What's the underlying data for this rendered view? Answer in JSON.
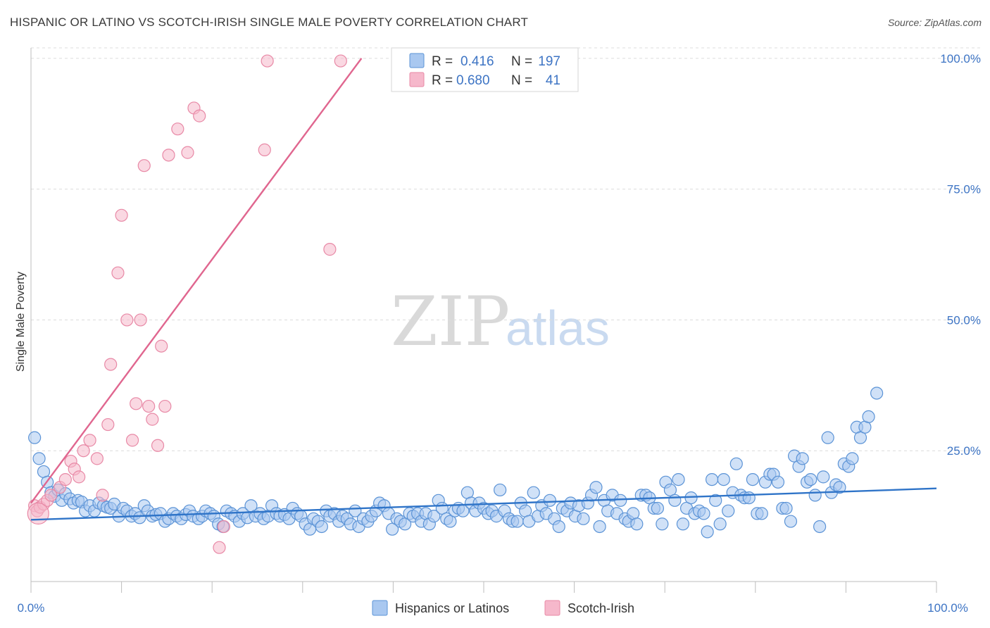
{
  "title": "HISPANIC OR LATINO VS SCOTCH-IRISH SINGLE MALE POVERTY CORRELATION CHART",
  "source": "Source: ZipAtlas.com",
  "watermark": {
    "zip": "ZIP",
    "atlas": "atlas"
  },
  "colors": {
    "blue_fill": "#a9c8f0",
    "blue_stroke": "#5b93d6",
    "blue_line": "#2f74c8",
    "pink_fill": "#f6b8cb",
    "pink_stroke": "#e889a6",
    "pink_line": "#e0668f",
    "axis_text": "#3d74c4",
    "grid": "#dcdcdc"
  },
  "legend": {
    "rows": [
      {
        "r_label": "R =",
        "r_value": "0.416",
        "n_label": "N =",
        "n_value": "197",
        "series": "blue"
      },
      {
        "r_label": "R =",
        "r_value": "0.680",
        "n_label": "N =",
        "n_value": "41",
        "series": "pink"
      }
    ]
  },
  "chart_data": {
    "type": "scatter",
    "title": "HISPANIC OR LATINO VS SCOTCH-IRISH SINGLE MALE POVERTY CORRELATION CHART",
    "xlabel": "",
    "ylabel": "Single Male Poverty",
    "xlim": [
      0,
      100
    ],
    "ylim": [
      0,
      102
    ],
    "x_tick_labels": [
      "0.0%",
      "100.0%"
    ],
    "y_ticks": [
      25,
      50,
      75,
      100
    ],
    "y_tick_labels": [
      "25.0%",
      "50.0%",
      "75.0%",
      "100.0%"
    ],
    "grid": true,
    "series": [
      {
        "name": "Hispanics or Latinos",
        "color": "blue",
        "trendline": {
          "x": [
            0,
            100
          ],
          "y": [
            11.8,
            17.8
          ]
        },
        "points": [
          [
            0.4,
            27.5
          ],
          [
            0.9,
            23.5
          ],
          [
            1.4,
            21
          ],
          [
            1.8,
            19
          ],
          [
            2.2,
            17
          ],
          [
            2.6,
            16.3
          ],
          [
            3,
            17.5
          ],
          [
            3.4,
            15.5
          ],
          [
            3.8,
            16.8
          ],
          [
            4.3,
            15.8
          ],
          [
            4.7,
            15
          ],
          [
            5.2,
            15.5
          ],
          [
            5.6,
            15.2
          ],
          [
            6,
            13.5
          ],
          [
            6.5,
            14.5
          ],
          [
            7,
            13.5
          ],
          [
            7.5,
            15
          ],
          [
            8,
            14.5
          ],
          [
            8.4,
            14.2
          ],
          [
            8.8,
            14
          ],
          [
            9.2,
            14.8
          ],
          [
            9.7,
            12.5
          ],
          [
            10.2,
            14
          ],
          [
            10.6,
            13.5
          ],
          [
            11.1,
            12.5
          ],
          [
            11.5,
            13
          ],
          [
            12,
            12.2
          ],
          [
            12.5,
            14.5
          ],
          [
            12.9,
            13.5
          ],
          [
            13.4,
            12.5
          ],
          [
            13.8,
            12.8
          ],
          [
            14.3,
            13
          ],
          [
            14.8,
            11.5
          ],
          [
            15.2,
            12
          ],
          [
            15.7,
            13
          ],
          [
            16.1,
            12.5
          ],
          [
            16.6,
            12
          ],
          [
            17.1,
            12.8
          ],
          [
            17.5,
            13.5
          ],
          [
            17.9,
            12.5
          ],
          [
            18.5,
            12
          ],
          [
            18.9,
            12.5
          ],
          [
            19.3,
            13.5
          ],
          [
            19.8,
            13
          ],
          [
            20.2,
            12.5
          ],
          [
            20.7,
            11
          ],
          [
            21.2,
            10.5
          ],
          [
            21.6,
            13.5
          ],
          [
            22.1,
            13
          ],
          [
            22.5,
            12.5
          ],
          [
            23,
            11.5
          ],
          [
            23.4,
            13
          ],
          [
            23.9,
            12.2
          ],
          [
            24.3,
            14.5
          ],
          [
            24.8,
            12.5
          ],
          [
            25.3,
            13
          ],
          [
            25.7,
            12
          ],
          [
            26.2,
            12.5
          ],
          [
            26.6,
            14.5
          ],
          [
            27.1,
            13
          ],
          [
            27.5,
            12.5
          ],
          [
            28,
            12.8
          ],
          [
            28.5,
            12
          ],
          [
            28.9,
            14
          ],
          [
            29.4,
            13
          ],
          [
            29.8,
            12.5
          ],
          [
            30.3,
            11
          ],
          [
            30.8,
            10
          ],
          [
            31.2,
            12
          ],
          [
            31.7,
            11.5
          ],
          [
            32.1,
            10.5
          ],
          [
            32.6,
            13.5
          ],
          [
            33,
            12.5
          ],
          [
            33.5,
            13
          ],
          [
            34,
            11.5
          ],
          [
            34.4,
            12.5
          ],
          [
            34.9,
            12
          ],
          [
            35.3,
            11
          ],
          [
            35.8,
            13.5
          ],
          [
            36.2,
            10.5
          ],
          [
            36.7,
            12
          ],
          [
            37.2,
            11.5
          ],
          [
            37.6,
            12.5
          ],
          [
            38.1,
            13.5
          ],
          [
            38.5,
            15
          ],
          [
            39,
            14.5
          ],
          [
            39.5,
            13
          ],
          [
            39.9,
            10
          ],
          [
            40.4,
            12
          ],
          [
            40.8,
            11.5
          ],
          [
            41.3,
            11
          ],
          [
            41.8,
            13
          ],
          [
            42.2,
            12.5
          ],
          [
            42.7,
            13
          ],
          [
            43.1,
            11.5
          ],
          [
            43.6,
            13
          ],
          [
            44,
            11
          ],
          [
            44.5,
            12.5
          ],
          [
            45,
            15.5
          ],
          [
            45.4,
            14
          ],
          [
            45.9,
            12
          ],
          [
            46.3,
            11.5
          ],
          [
            46.8,
            13.5
          ],
          [
            47.2,
            14
          ],
          [
            47.7,
            13.5
          ],
          [
            48.2,
            17
          ],
          [
            48.6,
            15
          ],
          [
            49.1,
            13.5
          ],
          [
            49.5,
            15
          ],
          [
            50,
            14
          ],
          [
            50.5,
            13
          ],
          [
            50.9,
            13.5
          ],
          [
            51.4,
            12.5
          ],
          [
            51.8,
            17.5
          ],
          [
            52.3,
            13.5
          ],
          [
            52.8,
            12
          ],
          [
            53.2,
            11.5
          ],
          [
            53.7,
            11.5
          ],
          [
            54.1,
            15
          ],
          [
            54.6,
            13.5
          ],
          [
            55,
            11.5
          ],
          [
            55.5,
            17
          ],
          [
            56,
            12.5
          ],
          [
            56.4,
            14.5
          ],
          [
            56.9,
            13
          ],
          [
            57.3,
            15.5
          ],
          [
            57.8,
            12
          ],
          [
            58.3,
            10.5
          ],
          [
            58.7,
            14
          ],
          [
            59.2,
            13.5
          ],
          [
            59.6,
            15
          ],
          [
            60.1,
            12.5
          ],
          [
            60.5,
            14.5
          ],
          [
            61,
            12
          ],
          [
            61.5,
            15
          ],
          [
            61.9,
            16.5
          ],
          [
            62.4,
            18
          ],
          [
            62.8,
            10.5
          ],
          [
            63.3,
            15.5
          ],
          [
            63.7,
            13.5
          ],
          [
            64.2,
            16.5
          ],
          [
            64.7,
            13
          ],
          [
            65.1,
            15.5
          ],
          [
            65.6,
            12
          ],
          [
            66,
            11.5
          ],
          [
            66.5,
            13
          ],
          [
            66.9,
            11
          ],
          [
            67.4,
            16.5
          ],
          [
            67.9,
            16.5
          ],
          [
            68.3,
            16
          ],
          [
            68.8,
            14
          ],
          [
            69.2,
            14
          ],
          [
            69.7,
            11
          ],
          [
            70.1,
            19
          ],
          [
            70.6,
            17.5
          ],
          [
            71.1,
            15.5
          ],
          [
            71.5,
            19.5
          ],
          [
            72,
            11
          ],
          [
            72.4,
            14
          ],
          [
            72.9,
            16
          ],
          [
            73.3,
            13
          ],
          [
            73.8,
            13.5
          ],
          [
            74.3,
            13
          ],
          [
            74.7,
            9.5
          ],
          [
            75.2,
            19.5
          ],
          [
            75.6,
            15.5
          ],
          [
            76.1,
            11
          ],
          [
            76.5,
            19.5
          ],
          [
            77,
            13.5
          ],
          [
            77.5,
            17
          ],
          [
            77.9,
            22.5
          ],
          [
            78.4,
            16.5
          ],
          [
            78.8,
            16
          ],
          [
            79.3,
            16
          ],
          [
            79.7,
            19.5
          ],
          [
            80.2,
            13
          ],
          [
            80.7,
            13
          ],
          [
            81.1,
            19
          ],
          [
            81.6,
            20.5
          ],
          [
            82,
            20.5
          ],
          [
            82.5,
            19
          ],
          [
            83,
            14
          ],
          [
            83.4,
            14
          ],
          [
            83.9,
            11.5
          ],
          [
            84.3,
            24
          ],
          [
            84.8,
            22
          ],
          [
            85.2,
            23.5
          ],
          [
            85.7,
            19
          ],
          [
            86.1,
            19.5
          ],
          [
            86.6,
            16.5
          ],
          [
            87.1,
            10.5
          ],
          [
            87.5,
            20
          ],
          [
            88,
            27.5
          ],
          [
            88.4,
            17
          ],
          [
            88.9,
            18.5
          ],
          [
            89.3,
            18
          ],
          [
            89.8,
            22.5
          ],
          [
            90.3,
            22
          ],
          [
            90.7,
            23.5
          ],
          [
            91.2,
            29.5
          ],
          [
            91.6,
            27.5
          ],
          [
            92.1,
            29.5
          ],
          [
            92.5,
            31.5
          ],
          [
            93.4,
            36
          ]
        ]
      },
      {
        "name": "Scotch-Irish",
        "color": "pink",
        "trendline": {
          "x": [
            0,
            36.5
          ],
          "y": [
            15,
            100
          ]
        },
        "points": [
          [
            0.4,
            14.5
          ],
          [
            0.7,
            13.5
          ],
          [
            1,
            14.2
          ],
          [
            1.4,
            14.8
          ],
          [
            1.8,
            15.5
          ],
          [
            2.2,
            16.5
          ],
          [
            3.2,
            18
          ],
          [
            3.8,
            19.5
          ],
          [
            4.4,
            23
          ],
          [
            4.8,
            21.5
          ],
          [
            5.3,
            20
          ],
          [
            5.8,
            25
          ],
          [
            6.5,
            27
          ],
          [
            7.3,
            23.5
          ],
          [
            7.9,
            16.5
          ],
          [
            8.5,
            30
          ],
          [
            8.8,
            41.5
          ],
          [
            9.6,
            59
          ],
          [
            10,
            70
          ],
          [
            10.6,
            50
          ],
          [
            11.2,
            27
          ],
          [
            11.6,
            34
          ],
          [
            12.1,
            50
          ],
          [
            12.5,
            79.5
          ],
          [
            13,
            33.5
          ],
          [
            13.4,
            31
          ],
          [
            14,
            26
          ],
          [
            14.4,
            45
          ],
          [
            14.8,
            33.5
          ],
          [
            15.2,
            81.5
          ],
          [
            16.2,
            86.5
          ],
          [
            17.3,
            82
          ],
          [
            18,
            90.5
          ],
          [
            18.6,
            89
          ],
          [
            20.8,
            6.5
          ],
          [
            21.3,
            10.5
          ],
          [
            25.8,
            82.5
          ],
          [
            26.1,
            99.5
          ],
          [
            33,
            63.5
          ],
          [
            34.2,
            99.5
          ],
          [
            0.8,
            13
          ]
        ]
      }
    ]
  },
  "bottom_legend": [
    {
      "label": "Hispanics or Latinos",
      "series": "blue"
    },
    {
      "label": "Scotch-Irish",
      "series": "pink"
    }
  ]
}
